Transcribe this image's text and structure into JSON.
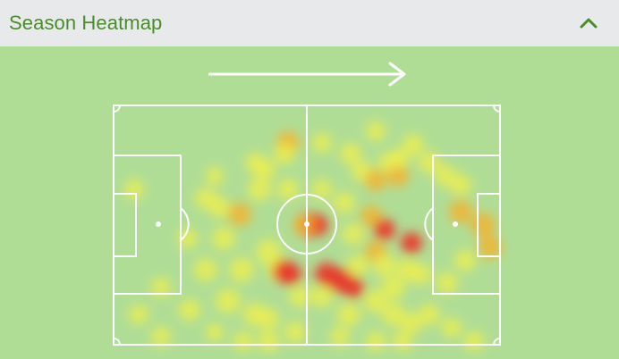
{
  "header": {
    "title": "Season Heatmap",
    "collapse_icon": "chevron-up-icon"
  },
  "colors": {
    "accent": "#4a8c2a",
    "header_bg": "#e8e9eb",
    "pitch_bg": "#b0dd96",
    "lines": "#ffffff",
    "heat_low": "#f2f04a",
    "heat_mid": "#f5b32f",
    "heat_high": "#e8382a"
  },
  "direction_icon": "arrow-right-icon"
}
